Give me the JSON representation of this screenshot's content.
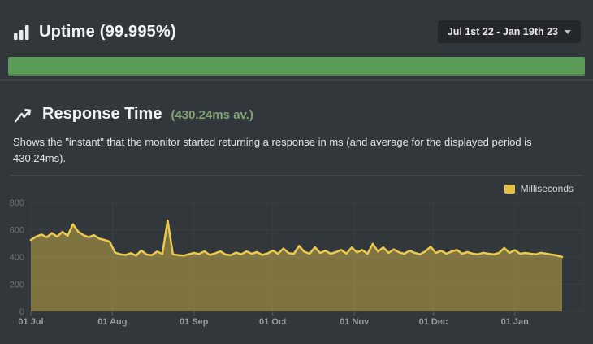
{
  "header": {
    "title": "Uptime (99.995%)",
    "date_range": {
      "label": "Jul 1st 22 - Jan 19th 23"
    }
  },
  "uptime_bar": {
    "value_percent": "99.995",
    "color": "#5a9b57"
  },
  "response": {
    "title": "Response Time",
    "average_label": "(430.24ms av.)",
    "description": "Shows the \"instant\" that the monitor started returning a response in ms (and average for the displayed period is 430.24ms)."
  },
  "accent_colors": {
    "uptime_green": "#5a9b57",
    "average_green": "#81a375",
    "series_yellow": "#ecca4f"
  },
  "chart_data": {
    "type": "area",
    "title": "Response Time (ms)",
    "xlabel": "",
    "ylabel": "ms",
    "ylim": [
      0,
      800
    ],
    "y_ticks": [
      0,
      200,
      400,
      600,
      800
    ],
    "x_ticks": [
      {
        "label": "01 Jul",
        "day": 0
      },
      {
        "label": "01 Aug",
        "day": 31
      },
      {
        "label": "01 Sep",
        "day": 62
      },
      {
        "label": "01 Oct",
        "day": 92
      },
      {
        "label": "01 Nov",
        "day": 123
      },
      {
        "label": "01 Dec",
        "day": 153
      },
      {
        "label": "01 Jan",
        "day": 184
      }
    ],
    "total_days": 202,
    "grid": true,
    "legend": {
      "label": "Milliseconds",
      "position": "top-right",
      "swatch_color": "#e2bf4a"
    },
    "series": [
      {
        "name": "Milliseconds",
        "line_color": "#ecca4f",
        "fill_color": "rgba(233,199,75,0.42)",
        "x_start_day": 0,
        "x_step_days": 2,
        "values": [
          525,
          550,
          565,
          545,
          575,
          550,
          585,
          555,
          640,
          585,
          560,
          545,
          560,
          535,
          525,
          512,
          432,
          420,
          415,
          428,
          410,
          448,
          418,
          414,
          440,
          422,
          668,
          420,
          414,
          410,
          420,
          430,
          422,
          442,
          415,
          426,
          442,
          418,
          414,
          432,
          420,
          441,
          424,
          436,
          415,
          426,
          447,
          424,
          462,
          428,
          424,
          481,
          438,
          424,
          471,
          430,
          446,
          424,
          436,
          452,
          425,
          470,
          434,
          452,
          424,
          496,
          440,
          471,
          430,
          456,
          434,
          424,
          446,
          430,
          420,
          441,
          476,
          430,
          446,
          424,
          440,
          452,
          424,
          436,
          424,
          420,
          431,
          424,
          419,
          430,
          466,
          430,
          451,
          424,
          430,
          424,
          419,
          431,
          424,
          418,
          412,
          400
        ]
      }
    ]
  }
}
